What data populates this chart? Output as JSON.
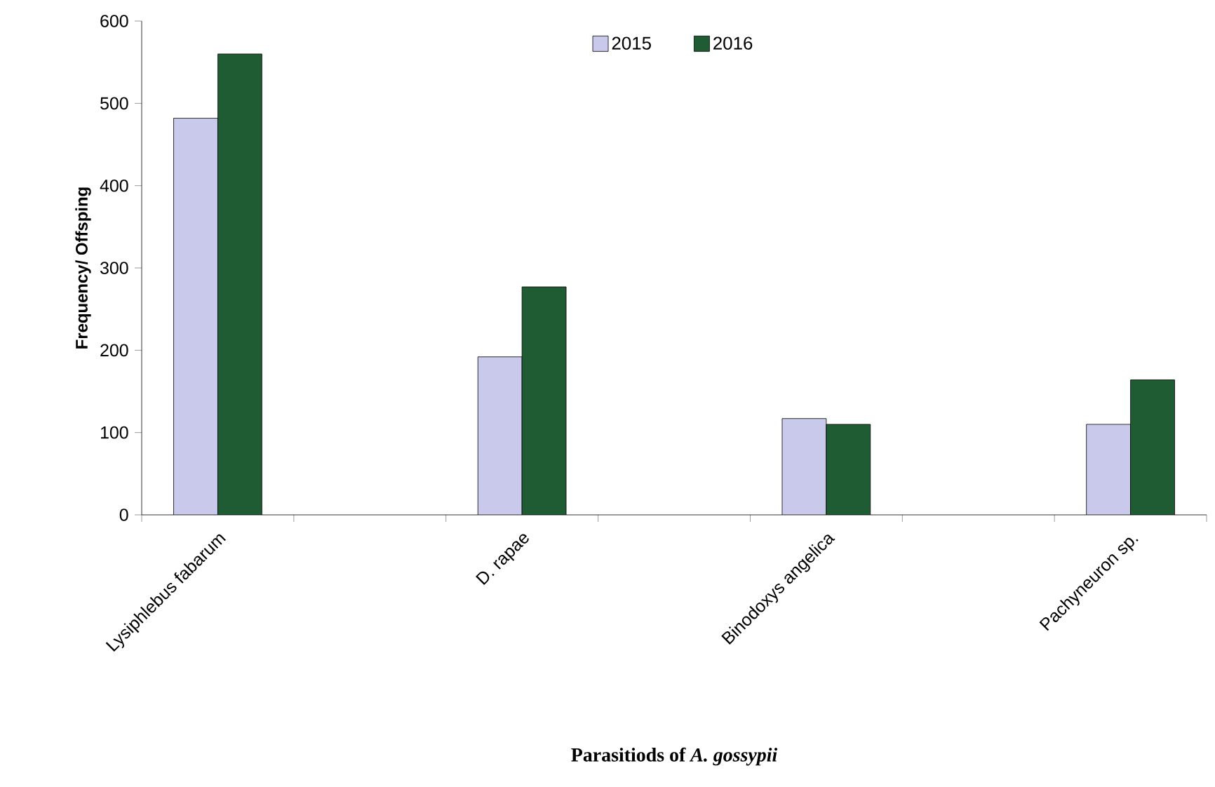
{
  "chart_data": {
    "type": "bar",
    "xlabel": "Parasitiods of *A. gossypii*",
    "ylabel": "Frequency/ Offsping",
    "categories": [
      "Lysiphlebus fabarum",
      null,
      "D. rapae",
      null,
      "Binodoxys angelica",
      null,
      "Pachyneuron sp."
    ],
    "series": [
      {
        "name": "2015",
        "color": "#c9c9ec",
        "values": [
          482,
          null,
          192,
          null,
          117,
          null,
          110
        ]
      },
      {
        "name": "2016",
        "color": "#1f5c33",
        "values": [
          560,
          null,
          277,
          null,
          110,
          null,
          164
        ]
      }
    ],
    "ylim": [
      0,
      600
    ],
    "yticks": [
      0,
      100,
      200,
      300,
      400,
      500,
      600
    ],
    "legend": "top",
    "grid": false
  }
}
